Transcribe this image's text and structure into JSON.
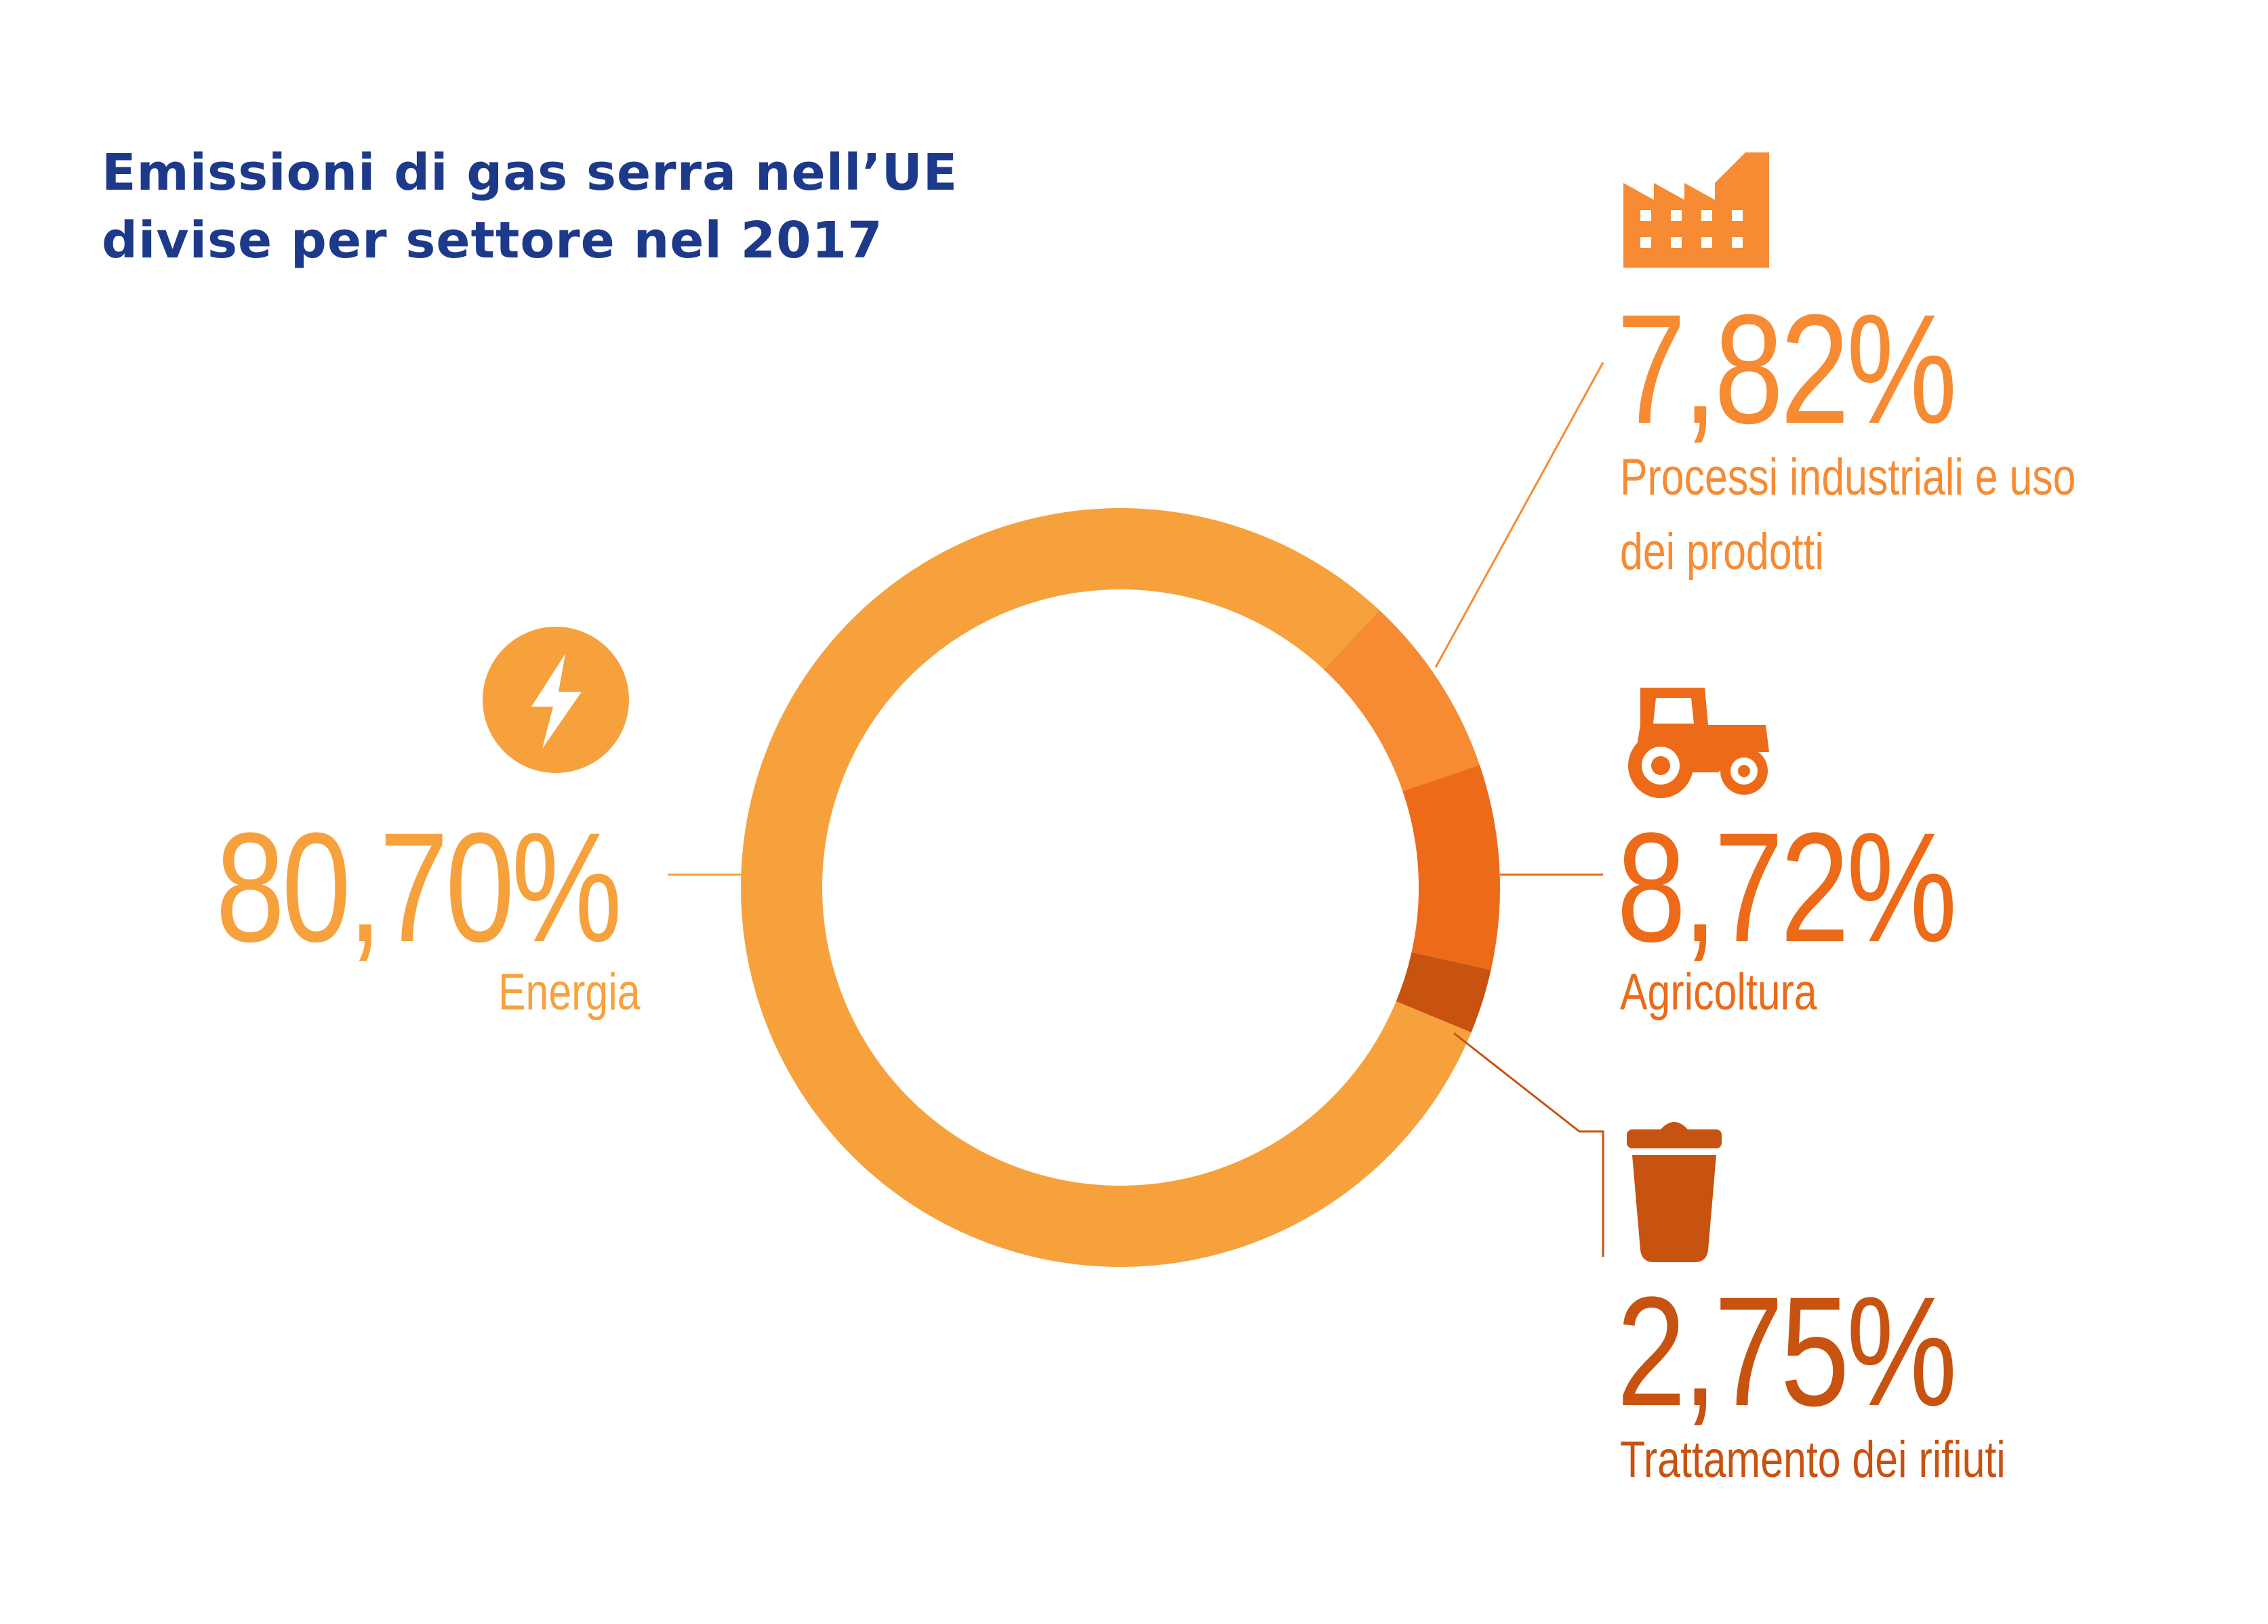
{
  "chart_data": {
    "type": "pie",
    "title": "Emissioni di gas serra nell’UE divise per settore nel 2017",
    "title_lines": [
      "Emissioni di gas serra nell’UE",
      "divise per settore nel 2017"
    ],
    "start_angle_deg": 43,
    "direction": "clockwise",
    "slices": [
      {
        "value_label": "7,82%",
        "label": "Processi industriali e uso dei prodotti",
        "label_lines": [
          "Processi industriali e uso",
          "dei prodotti"
        ],
        "value": 7.82,
        "color": "#f68b33",
        "icon": "factory-icon"
      },
      {
        "value_label": "8,72%",
        "label": "Agricoltura",
        "label_lines": [
          "Agricoltura"
        ],
        "value": 8.72,
        "color": "#ec6a18",
        "icon": "tractor-icon"
      },
      {
        "value_label": "2,75%",
        "label": "Trattamento dei rifiuti",
        "label_lines": [
          "Trattamento dei rifiuti"
        ],
        "value": 2.75,
        "color": "#c8520f",
        "icon": "trash-bin-icon"
      },
      {
        "value_label": "80,70%",
        "label": "Energia",
        "label_lines": [
          "Energia"
        ],
        "value": 80.7,
        "color": "#f7a13d",
        "icon": "lightning-icon"
      }
    ]
  }
}
